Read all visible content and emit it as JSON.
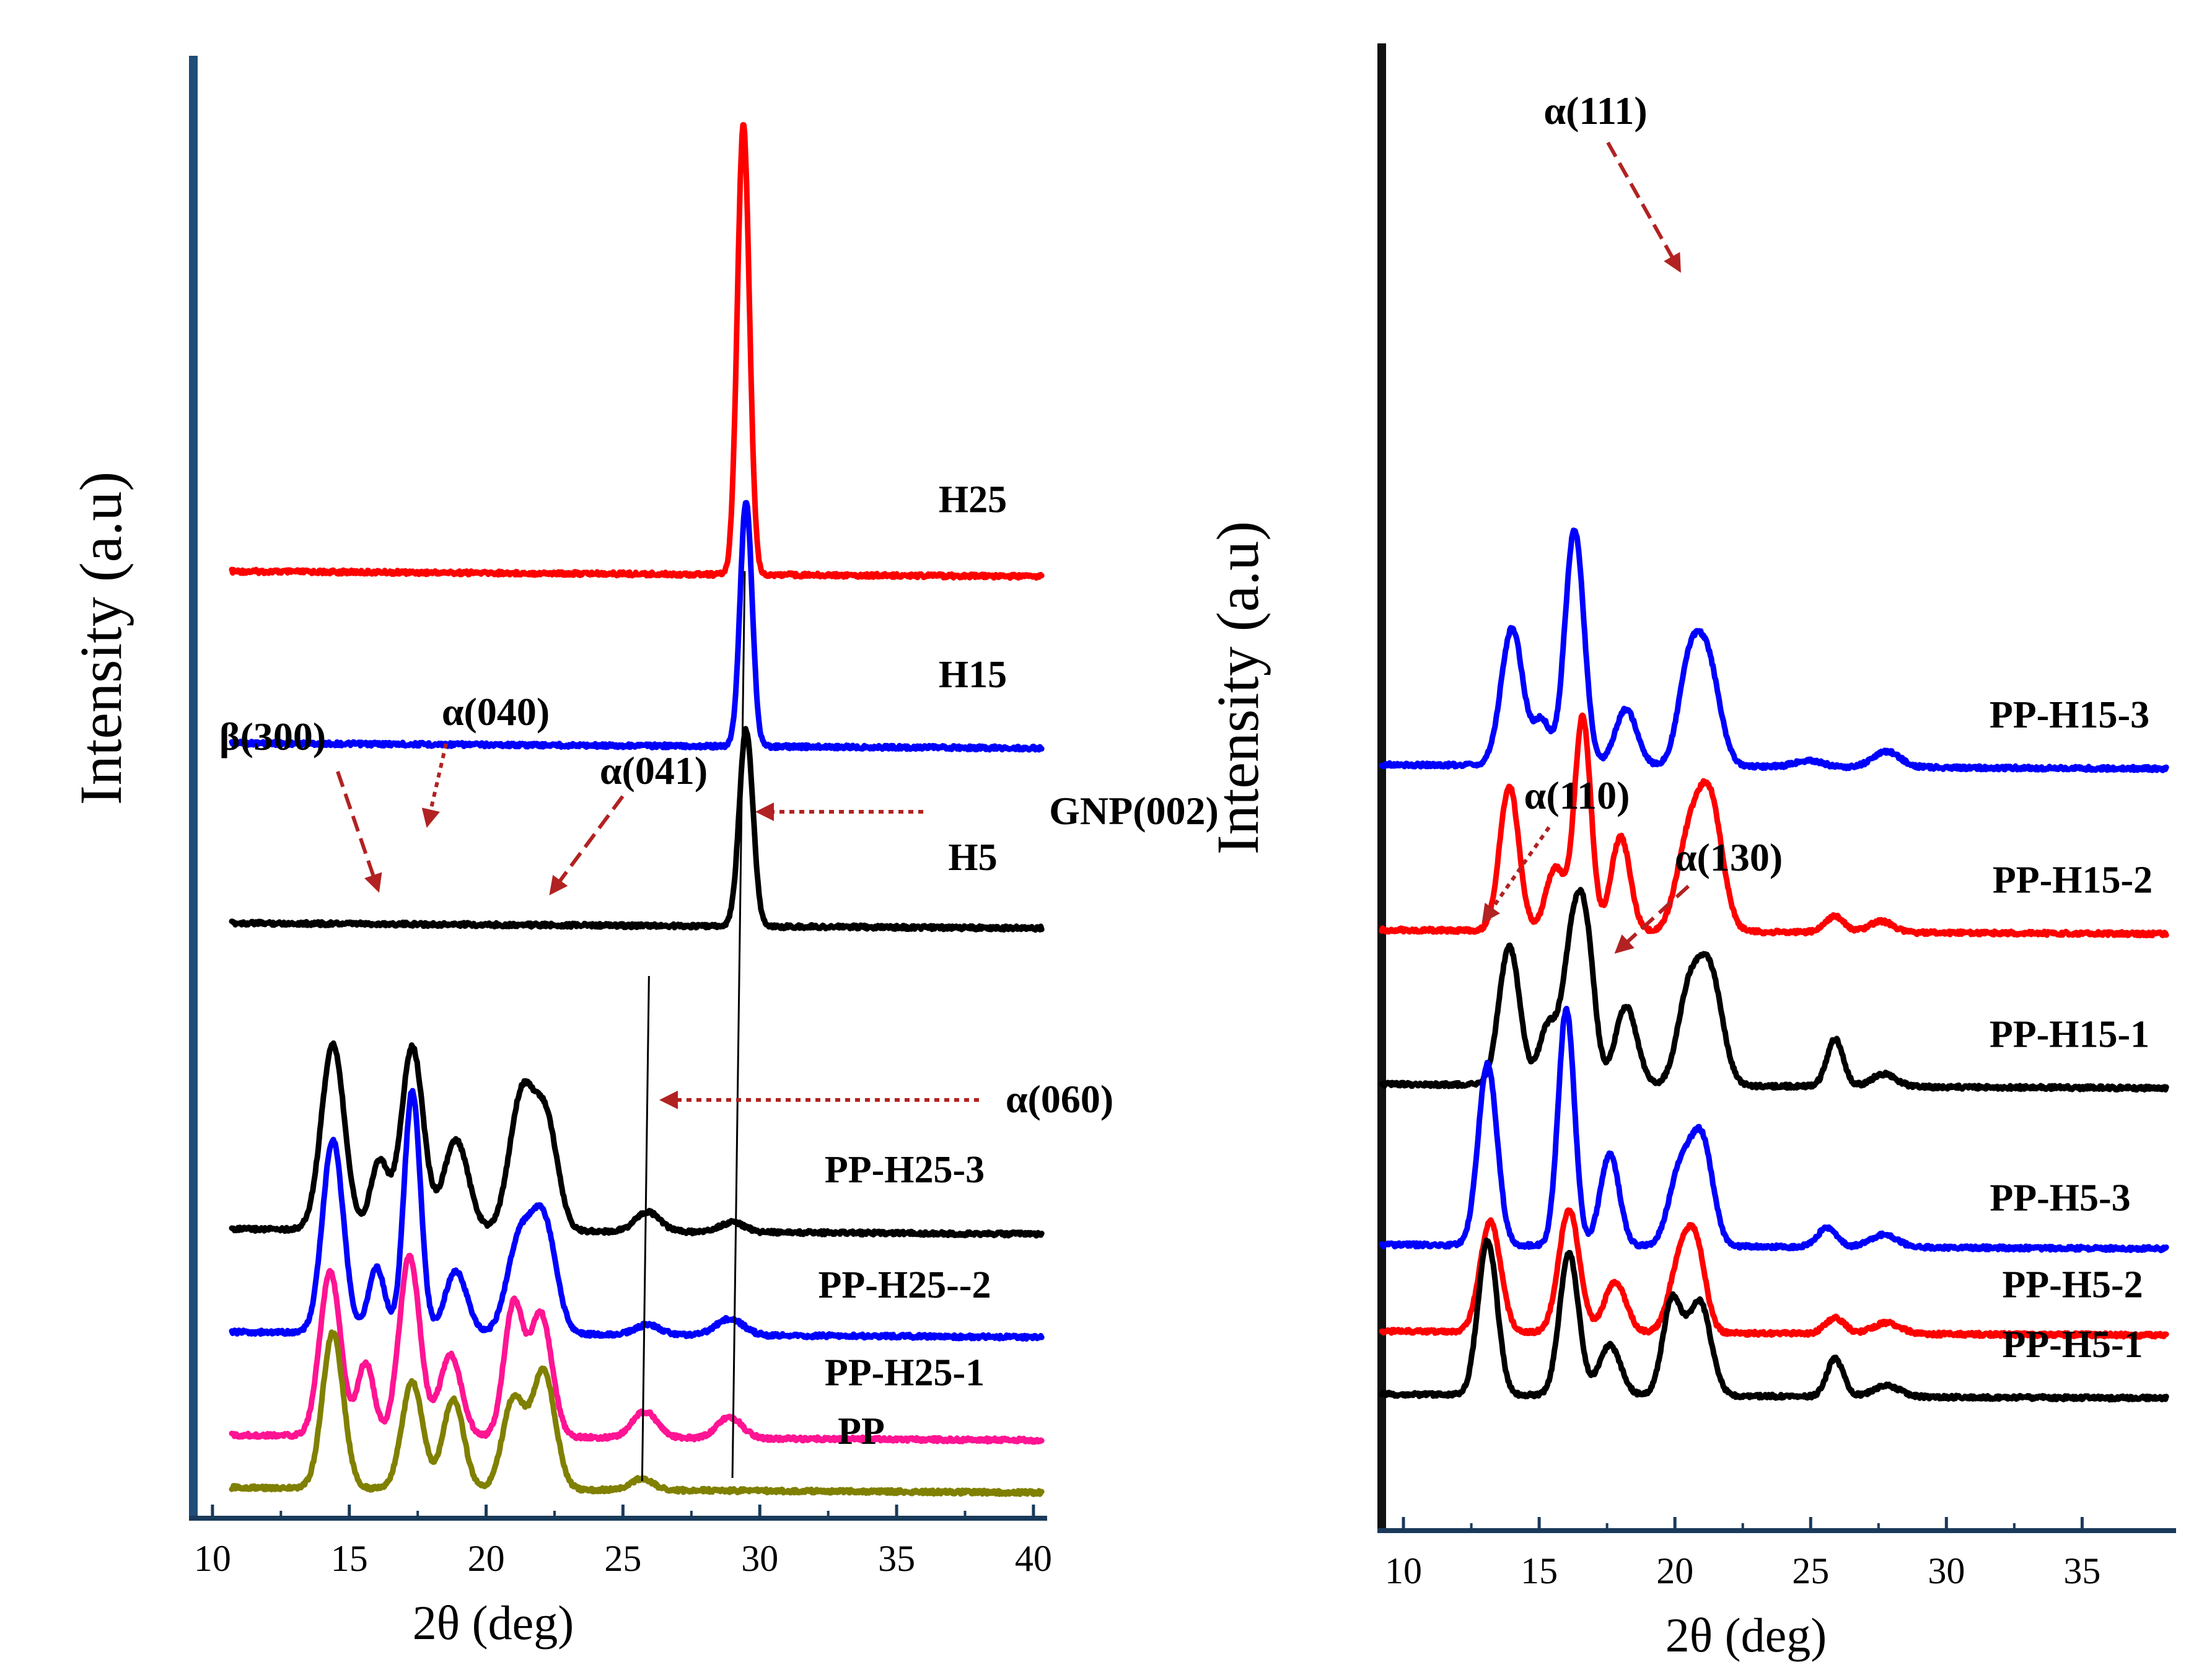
{
  "chart_data": [
    {
      "type": "line",
      "panel": "left",
      "xlabel": "2θ (deg)",
      "ylabel": "Intensity (a.u)",
      "xlim": [
        9.3,
        40.5
      ],
      "xticks": [
        "10",
        "15",
        "20",
        "25",
        "30",
        "35",
        "40"
      ],
      "grid": false,
      "series": [
        {
          "name": "H25",
          "color": "#ff0000",
          "baseline": 5.6,
          "peaks": [
            [
              29.4,
              2.75,
              0.22
            ]
          ]
        },
        {
          "name": "H15",
          "color": "#0000ff",
          "baseline": 4.55,
          "peaks": [
            [
              29.5,
              1.5,
              0.22
            ]
          ]
        },
        {
          "name": "H5",
          "color": "#000000",
          "baseline": 3.45,
          "peaks": [
            [
              29.5,
              1.2,
              0.25
            ]
          ]
        },
        {
          "name": "PP-H25-3",
          "color": "#000000",
          "baseline": 1.58,
          "peaks": [
            [
              14.4,
              1.13,
              0.42
            ],
            [
              16.1,
              0.42,
              0.32
            ],
            [
              17.3,
              1.12,
              0.4
            ],
            [
              18.9,
              0.55,
              0.45
            ],
            [
              21.3,
              0.82,
              0.45
            ],
            [
              22.2,
              0.65,
              0.42
            ],
            [
              25.9,
              0.12,
              0.45
            ],
            [
              29.0,
              0.06,
              0.45
            ]
          ]
        },
        {
          "name": "PP-H25--2",
          "color": "#0000ff",
          "baseline": 0.95,
          "peaks": [
            [
              14.4,
              1.18,
              0.38
            ],
            [
              16.0,
              0.4,
              0.3
            ],
            [
              17.3,
              1.48,
              0.3
            ],
            [
              18.9,
              0.38,
              0.4
            ],
            [
              21.2,
              0.55,
              0.45
            ],
            [
              22.1,
              0.68,
              0.45
            ],
            [
              25.9,
              0.06,
              0.45
            ],
            [
              28.9,
              0.1,
              0.5
            ]
          ]
        },
        {
          "name": "PP-H25-1",
          "color": "#ff1493",
          "baseline": 0.32,
          "peaks": [
            [
              14.3,
              1.0,
              0.38
            ],
            [
              15.6,
              0.45,
              0.3
            ],
            [
              17.2,
              1.1,
              0.38
            ],
            [
              18.7,
              0.5,
              0.4
            ],
            [
              21.0,
              0.8,
              0.35
            ],
            [
              22.0,
              0.75,
              0.4
            ],
            [
              25.8,
              0.16,
              0.45
            ],
            [
              28.9,
              0.13,
              0.45
            ]
          ]
        },
        {
          "name": "PP",
          "color": "#808000",
          "baseline": 0.0,
          "peaks": [
            [
              14.4,
              0.95,
              0.38
            ],
            [
              17.3,
              0.65,
              0.38
            ],
            [
              18.8,
              0.55,
              0.38
            ],
            [
              21.0,
              0.55,
              0.4
            ],
            [
              22.1,
              0.72,
              0.42
            ],
            [
              25.7,
              0.07,
              0.4
            ]
          ]
        }
      ],
      "annotations": [
        {
          "text": "β(300)",
          "peak": 16.0
        },
        {
          "text": "α(040)",
          "peak": 17.4
        },
        {
          "text": "α(041)",
          "peak": 22.0
        },
        {
          "text": "GNP(002)",
          "peak": 29.2
        },
        {
          "text": "α(060)",
          "peak": 25.9
        }
      ]
    },
    {
      "type": "line",
      "panel": "right",
      "xlabel": "2θ (deg)",
      "ylabel": "Intensity (a.u)",
      "xlim": [
        9.2,
        38.3
      ],
      "xticks": [
        "10",
        "15",
        "20",
        "25",
        "30",
        "35"
      ],
      "grid": false,
      "series": [
        {
          "name": "PP-H15-3",
          "color": "#0000ff",
          "baseline": 4.0,
          "peaks": [
            [
              14.0,
              0.87,
              0.4
            ],
            [
              15.1,
              0.28,
              0.3
            ],
            [
              16.3,
              1.5,
              0.35
            ],
            [
              18.2,
              0.36,
              0.4
            ],
            [
              20.5,
              0.55,
              0.4
            ],
            [
              21.2,
              0.65,
              0.45
            ],
            [
              24.9,
              0.04,
              0.5
            ],
            [
              27.8,
              0.1,
              0.5
            ]
          ]
        },
        {
          "name": "PP-H15-2",
          "color": "#ff0000",
          "baseline": 2.95,
          "peaks": [
            [
              13.9,
              0.92,
              0.35
            ],
            [
              15.6,
              0.4,
              0.35
            ],
            [
              16.6,
              1.36,
              0.3
            ],
            [
              18.0,
              0.6,
              0.35
            ],
            [
              20.5,
              0.55,
              0.45
            ],
            [
              21.3,
              0.8,
              0.45
            ],
            [
              25.9,
              0.1,
              0.35
            ],
            [
              27.6,
              0.07,
              0.45
            ]
          ]
        },
        {
          "name": "PP-H15-1",
          "color": "#000000",
          "baseline": 1.97,
          "peaks": [
            [
              13.9,
              0.88,
              0.38
            ],
            [
              15.3,
              0.35,
              0.32
            ],
            [
              16.3,
              1.02,
              0.4
            ],
            [
              16.8,
              0.55,
              0.3
            ],
            [
              18.2,
              0.5,
              0.4
            ],
            [
              20.5,
              0.55,
              0.42
            ],
            [
              21.3,
              0.7,
              0.45
            ],
            [
              25.9,
              0.3,
              0.3
            ],
            [
              27.7,
              0.08,
              0.45
            ]
          ]
        },
        {
          "name": "PP-H5-3",
          "color": "#0000ff",
          "baseline": 0.95,
          "peaks": [
            [
              13.1,
              1.15,
              0.35
            ],
            [
              16.0,
              1.5,
              0.3
            ],
            [
              17.6,
              0.58,
              0.35
            ],
            [
              20.2,
              0.48,
              0.42
            ],
            [
              21.0,
              0.65,
              0.4
            ],
            [
              25.6,
              0.12,
              0.35
            ],
            [
              27.7,
              0.08,
              0.5
            ]
          ]
        },
        {
          "name": "PP-H5-2",
          "color": "#ff0000",
          "baseline": 0.4,
          "peaks": [
            [
              13.2,
              0.7,
              0.38
            ],
            [
              16.1,
              0.78,
              0.38
            ],
            [
              17.8,
              0.32,
              0.4
            ],
            [
              20.2,
              0.45,
              0.4
            ],
            [
              20.8,
              0.48,
              0.35
            ],
            [
              25.9,
              0.1,
              0.35
            ],
            [
              27.8,
              0.07,
              0.5
            ]
          ]
        },
        {
          "name": "PP-H5-1",
          "color": "#000000",
          "baseline": 0.0,
          "peaks": [
            [
              13.1,
              0.98,
              0.35
            ],
            [
              16.1,
              0.9,
              0.35
            ],
            [
              17.6,
              0.32,
              0.4
            ],
            [
              19.9,
              0.6,
              0.35
            ],
            [
              20.9,
              0.6,
              0.42
            ],
            [
              25.9,
              0.24,
              0.3
            ],
            [
              27.8,
              0.07,
              0.5
            ]
          ]
        }
      ],
      "annotations": [
        {
          "text": "α(111)",
          "peak": 20.5
        },
        {
          "text": "α(110)",
          "peak": 13.1
        },
        {
          "text": "α(130)",
          "peak": 17.6
        }
      ]
    }
  ]
}
